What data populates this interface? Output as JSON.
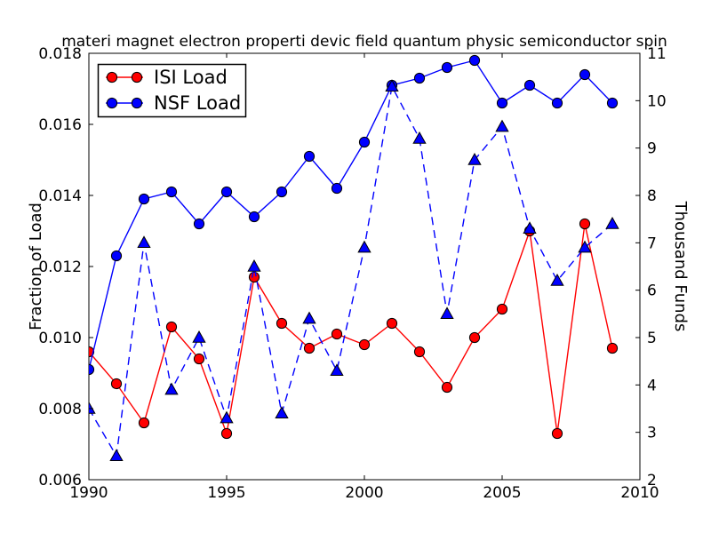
{
  "chart_data": {
    "type": "line",
    "title": "materi magnet electron properti devic field quantum physic semiconductor spin",
    "x": [
      1990,
      1991,
      1992,
      1993,
      1994,
      1995,
      1996,
      1997,
      1998,
      1999,
      2000,
      2001,
      2002,
      2003,
      2004,
      2005,
      2006,
      2007,
      2008,
      2009
    ],
    "series": [
      {
        "name": "ISI Load",
        "axis": "left",
        "color": "#ff0000",
        "line_style": "solid",
        "marker": "circle",
        "values": [
          0.0096,
          0.0087,
          0.0076,
          0.0103,
          0.0094,
          0.0073,
          0.0117,
          0.0104,
          0.0097,
          0.0101,
          0.0098,
          0.0104,
          0.0096,
          0.0086,
          0.01,
          0.0108,
          0.013,
          0.0073,
          0.0132,
          0.0097
        ]
      },
      {
        "name": "NSF Load",
        "axis": "left",
        "color": "#0000ff",
        "line_style": "solid",
        "marker": "circle",
        "values": [
          0.0091,
          0.0123,
          0.0139,
          0.0141,
          0.0132,
          0.0141,
          0.0134,
          0.0141,
          0.0151,
          0.0142,
          0.0155,
          0.0171,
          0.0173,
          0.0176,
          0.0178,
          0.0166,
          0.0171,
          0.0166,
          0.0174,
          0.0166
        ]
      },
      {
        "name": "",
        "axis": "right",
        "color": "#0000ff",
        "line_style": "dashed",
        "marker": "triangle-up",
        "values": [
          3.5,
          2.5,
          7.0,
          3.9,
          5.0,
          3.3,
          6.5,
          3.4,
          5.4,
          4.3,
          6.9,
          10.3,
          9.2,
          5.5,
          8.75,
          9.45,
          7.3,
          6.2,
          6.9,
          7.4
        ]
      }
    ],
    "x_axis": {
      "range": [
        1990,
        2010
      ],
      "ticks": [
        1990,
        1995,
        2000,
        2005,
        2010
      ]
    },
    "left_axis": {
      "label": "Fraction of Load",
      "range": [
        0.006,
        0.018
      ],
      "ticks": [
        "0.006",
        "0.008",
        "0.010",
        "0.012",
        "0.014",
        "0.016",
        "0.018"
      ]
    },
    "right_axis": {
      "label": "Thousand Funds",
      "range": [
        2,
        11
      ],
      "ticks": [
        "2",
        "3",
        "4",
        "5",
        "6",
        "7",
        "8",
        "9",
        "10",
        "11"
      ]
    },
    "legend": {
      "position": "upper-left",
      "entries": [
        {
          "label": "ISI Load"
        },
        {
          "label": "NSF Load"
        }
      ]
    },
    "grid": false,
    "colors": {
      "background": "#ffffff",
      "frame": "#000000",
      "marker_edge": "#000000",
      "text": "#000000"
    }
  }
}
